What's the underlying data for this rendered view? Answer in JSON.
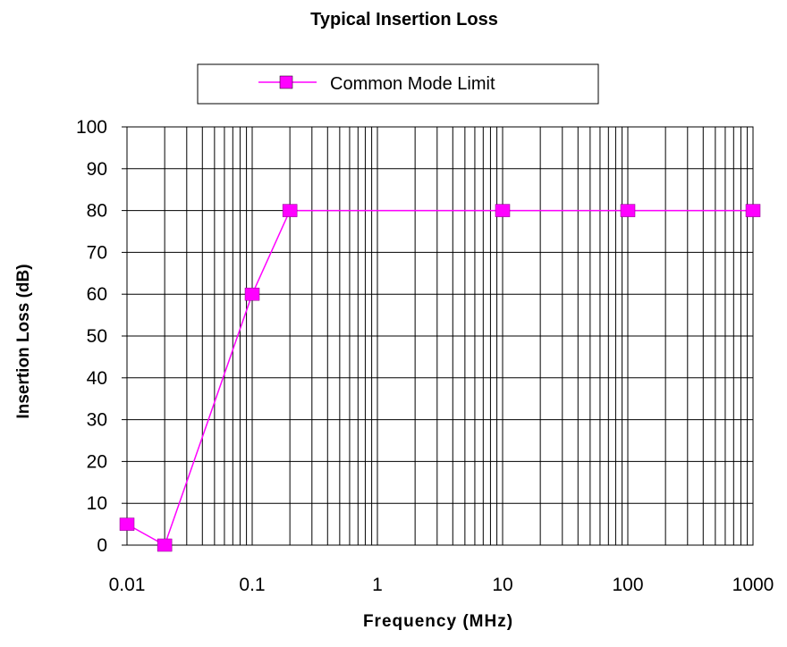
{
  "chart_data": {
    "type": "line",
    "title": "Typical Insertion Loss",
    "xlabel": "Frequency (MHz)",
    "ylabel": "Insertion Loss (dB)",
    "x_scale": "log",
    "xlim": [
      0.01,
      1000
    ],
    "ylim": [
      0,
      100
    ],
    "x_ticks": [
      "0.01",
      "0.1",
      "1",
      "10",
      "100",
      "1000"
    ],
    "y_ticks": [
      "0",
      "10",
      "20",
      "30",
      "40",
      "50",
      "60",
      "70",
      "80",
      "90",
      "100"
    ],
    "grid": true,
    "legend_position": "top-center",
    "series": [
      {
        "name": "Common Mode Limit",
        "color": "#ff00ff",
        "marker": "square",
        "x": [
          0.01,
          0.02,
          0.1,
          0.2,
          10,
          100,
          1000
        ],
        "y": [
          5,
          0,
          60,
          80,
          80,
          80,
          80
        ]
      }
    ]
  }
}
